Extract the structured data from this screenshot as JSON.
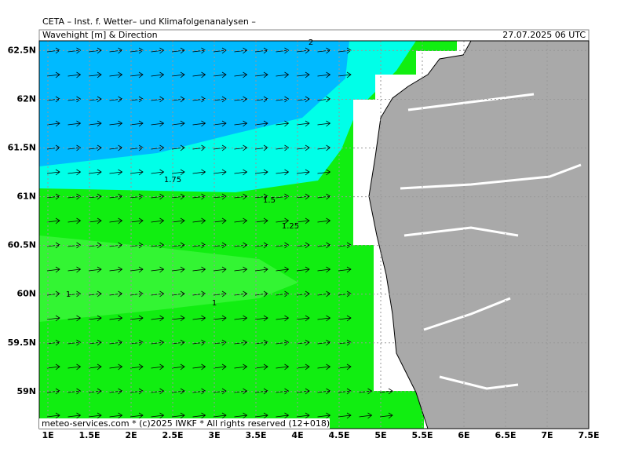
{
  "header": {
    "title": "CETA – Inst. f. Wetter– und Klimafolgenanalysen –",
    "subtitle": "Wavehight [m] & Direction",
    "date": "27.07.2025 06 UTC"
  },
  "footer": "meteo-services.com * (c)2025 IWKF * All rights reserved (12+018)",
  "map": {
    "xlim": [
      0.896,
      7.5
    ],
    "ylim": [
      58.62,
      62.6
    ],
    "xticks": [
      {
        "value": 1,
        "label": "1E"
      },
      {
        "value": 1.5,
        "label": "1.5E"
      },
      {
        "value": 2,
        "label": "2E"
      },
      {
        "value": 2.5,
        "label": "2.5E"
      },
      {
        "value": 3,
        "label": "3E"
      },
      {
        "value": 3.5,
        "label": "3.5E"
      },
      {
        "value": 4,
        "label": "4E"
      },
      {
        "value": 4.5,
        "label": "4.5E"
      },
      {
        "value": 5,
        "label": "5E"
      },
      {
        "value": 5.5,
        "label": "5.5E"
      },
      {
        "value": 6,
        "label": "6E"
      },
      {
        "value": 6.5,
        "label": "6.5E"
      },
      {
        "value": 7,
        "label": "7E"
      },
      {
        "value": 7.5,
        "label": "7.5E"
      }
    ],
    "yticks": [
      {
        "value": 62.5,
        "label": "62.5N"
      },
      {
        "value": 62,
        "label": "62N"
      },
      {
        "value": 61.5,
        "label": "61.5N"
      },
      {
        "value": 61,
        "label": "61N"
      },
      {
        "value": 60.5,
        "label": "60.5N"
      },
      {
        "value": 60,
        "label": "60N"
      },
      {
        "value": 59.5,
        "label": "59.5N"
      },
      {
        "value": 59,
        "label": "59N"
      }
    ],
    "contour_labels": [
      2,
      1.75,
      1.5,
      1.25,
      1,
      1
    ]
  }
}
